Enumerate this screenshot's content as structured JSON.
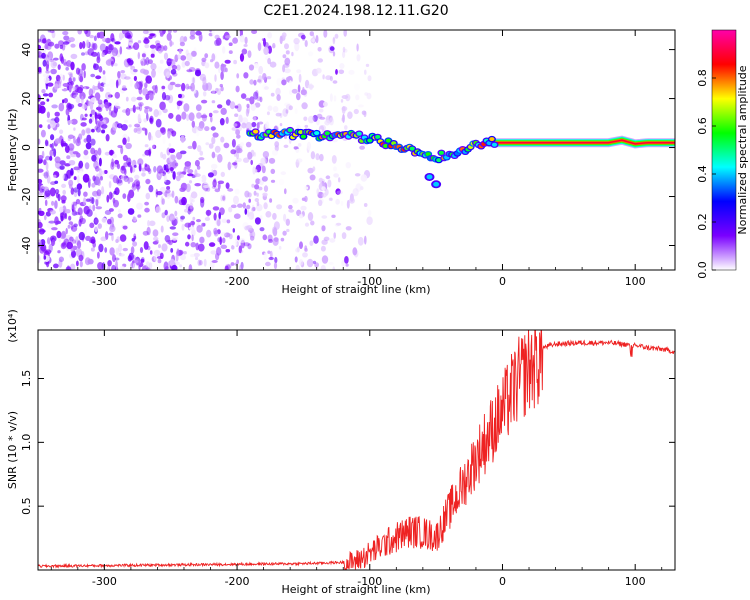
{
  "title": "C2E1.2024.198.12.11.G20",
  "chart_data": [
    {
      "type": "heatmap",
      "xlabel": "Height of straight line (km)",
      "ylabel": "Frequency (Hz)",
      "xlim": [
        -350,
        130
      ],
      "ylim": [
        -50,
        48
      ],
      "xticks": [
        -300,
        -200,
        -100,
        0,
        100
      ],
      "xtick_labels": [
        "-300",
        "-200",
        "-100",
        "0",
        "100"
      ],
      "yticks": [
        -40,
        -20,
        0,
        20,
        40
      ],
      "ytick_labels": [
        "-40",
        "-20",
        "0",
        "20",
        "40"
      ],
      "colorbar": {
        "label": "Normalized spectral amplitude",
        "range": [
          0,
          1
        ],
        "ticks": [
          0.0,
          0.2,
          0.4,
          0.6,
          0.8
        ],
        "tick_labels": [
          "0.0",
          "0.2",
          "0.4",
          "0.6",
          "0.8"
        ],
        "colors": [
          "#ffffff",
          "#7a00ff",
          "#0000ff",
          "#00ffff",
          "#00ff00",
          "#ffff00",
          "#ff0000",
          "#ff00aa"
        ]
      },
      "ridge": {
        "description_points_x": [
          -190,
          -170,
          -150,
          -130,
          -110,
          -95,
          -80,
          -70,
          -60,
          -50,
          -40,
          -30,
          -20,
          -10,
          0,
          20,
          40,
          60,
          80,
          90,
          100,
          110,
          130
        ],
        "description_points_y": [
          5,
          6,
          5.5,
          5,
          4.5,
          3,
          1,
          -1,
          -2,
          -4,
          -3,
          -1,
          1,
          2,
          2,
          2,
          2,
          2,
          2,
          3,
          1.5,
          2,
          2
        ]
      }
    },
    {
      "type": "line",
      "xlabel": "Height of straight line (km)",
      "ylabel": "SNR (10 * v/v)",
      "y_multiplier": "(x10⁴)",
      "xlim": [
        -350,
        130
      ],
      "ylim": [
        0,
        1.88
      ],
      "xticks": [
        -300,
        -200,
        -100,
        0,
        100
      ],
      "xtick_labels": [
        "-300",
        "-200",
        "-100",
        "0",
        "100"
      ],
      "yticks": [
        0.5,
        1.0,
        1.5
      ],
      "ytick_labels": [
        "0.5",
        "1.0",
        "1.5"
      ],
      "color": "#ee2222",
      "envelope_x": [
        -350,
        -250,
        -150,
        -120,
        -110,
        -100,
        -90,
        -80,
        -70,
        -60,
        -50,
        -40,
        -30,
        -20,
        -10,
        0,
        10,
        20,
        30,
        40,
        60,
        80,
        100,
        110,
        120,
        130
      ],
      "envelope_y": [
        0.03,
        0.04,
        0.05,
        0.06,
        0.09,
        0.15,
        0.22,
        0.28,
        0.33,
        0.32,
        0.28,
        0.5,
        0.7,
        0.92,
        1.12,
        1.3,
        1.52,
        1.66,
        1.74,
        1.77,
        1.78,
        1.78,
        1.76,
        1.74,
        1.73,
        1.71
      ]
    }
  ]
}
